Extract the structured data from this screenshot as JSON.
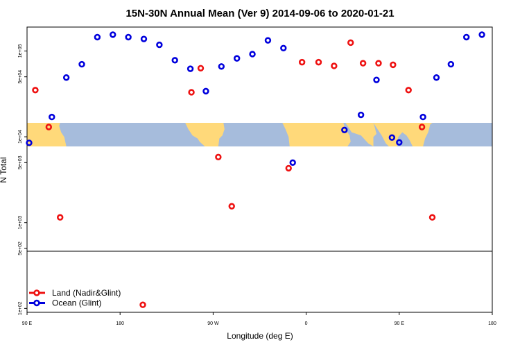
{
  "chart_data": {
    "type": "scatter",
    "title": "15N-30N Annual Mean (Ver 9)   2014-09-06 to 2020-01-21",
    "xlabel": "Longitude (deg E)",
    "ylabel": "N Total",
    "x_ticks": [
      {
        "value": 90,
        "label": "90 E"
      },
      {
        "value": 180,
        "label": "180"
      },
      {
        "value": 270,
        "label": "90 W"
      },
      {
        "value": 360,
        "label": "0"
      },
      {
        "value": 450,
        "label": "90 E"
      },
      {
        "value": 540,
        "label": "180"
      }
    ],
    "y_ticks": [
      {
        "value": 100,
        "label": "1e+02"
      },
      {
        "value": 500,
        "label": "5e+02"
      },
      {
        "value": 1000,
        "label": "1e+03"
      },
      {
        "value": 5000,
        "label": "5e+03"
      },
      {
        "value": 10000,
        "label": "1e+04"
      },
      {
        "value": 50000,
        "label": "5e+04"
      },
      {
        "value": 100000,
        "label": "1e+05"
      }
    ],
    "xlim": [
      90,
      540
    ],
    "ylim_log": [
      90,
      190000
    ],
    "y_scale": "log",
    "map_band": {
      "lon_start": 90,
      "lon_end": 540,
      "lat_start": 15,
      "lat_end": 30
    },
    "colors": {
      "land": "#ee1111",
      "ocean": "#0000dd",
      "ocean_map": "#a6bcdc",
      "land_map": "#ffd97a"
    },
    "legend": {
      "position": "bottom-left"
    },
    "series": [
      {
        "name": "Land (Nadir&Glint)",
        "color": "#ee1111",
        "points": [
          {
            "x": 98,
            "y": 35000
          },
          {
            "x": 111,
            "y": 13000
          },
          {
            "x": 122,
            "y": 1150
          },
          {
            "x": 202,
            "y": 110
          },
          {
            "x": 249,
            "y": 33000
          },
          {
            "x": 258,
            "y": 63000
          },
          {
            "x": 275,
            "y": 5800
          },
          {
            "x": 288,
            "y": 1550
          },
          {
            "x": 343,
            "y": 4300
          },
          {
            "x": 356,
            "y": 74000
          },
          {
            "x": 372,
            "y": 74000
          },
          {
            "x": 387,
            "y": 67000
          },
          {
            "x": 403,
            "y": 125000
          },
          {
            "x": 415,
            "y": 72000
          },
          {
            "x": 430,
            "y": 72000
          },
          {
            "x": 444,
            "y": 69000
          },
          {
            "x": 459,
            "y": 35000
          },
          {
            "x": 472,
            "y": 13000
          },
          {
            "x": 482,
            "y": 1150
          }
        ]
      },
      {
        "name": "Ocean (Glint)",
        "color": "#0000dd",
        "points": [
          {
            "x": 92,
            "y": 8500
          },
          {
            "x": 114,
            "y": 17000
          },
          {
            "x": 128,
            "y": 49000
          },
          {
            "x": 143,
            "y": 70000
          },
          {
            "x": 158,
            "y": 145000
          },
          {
            "x": 173,
            "y": 155000
          },
          {
            "x": 188,
            "y": 145000
          },
          {
            "x": 203,
            "y": 138000
          },
          {
            "x": 218,
            "y": 118000
          },
          {
            "x": 233,
            "y": 78000
          },
          {
            "x": 248,
            "y": 62000
          },
          {
            "x": 263,
            "y": 34000
          },
          {
            "x": 278,
            "y": 66000
          },
          {
            "x": 293,
            "y": 82000
          },
          {
            "x": 308,
            "y": 92000
          },
          {
            "x": 323,
            "y": 133000
          },
          {
            "x": 338,
            "y": 108000
          },
          {
            "x": 347,
            "y": 5000
          },
          {
            "x": 397,
            "y": 12000
          },
          {
            "x": 413,
            "y": 18000
          },
          {
            "x": 428,
            "y": 46000
          },
          {
            "x": 443,
            "y": 9800
          },
          {
            "x": 450,
            "y": 8600
          },
          {
            "x": 473,
            "y": 17000
          },
          {
            "x": 486,
            "y": 49000
          },
          {
            "x": 500,
            "y": 70000
          },
          {
            "x": 515,
            "y": 145000
          },
          {
            "x": 530,
            "y": 155000
          }
        ]
      }
    ]
  }
}
